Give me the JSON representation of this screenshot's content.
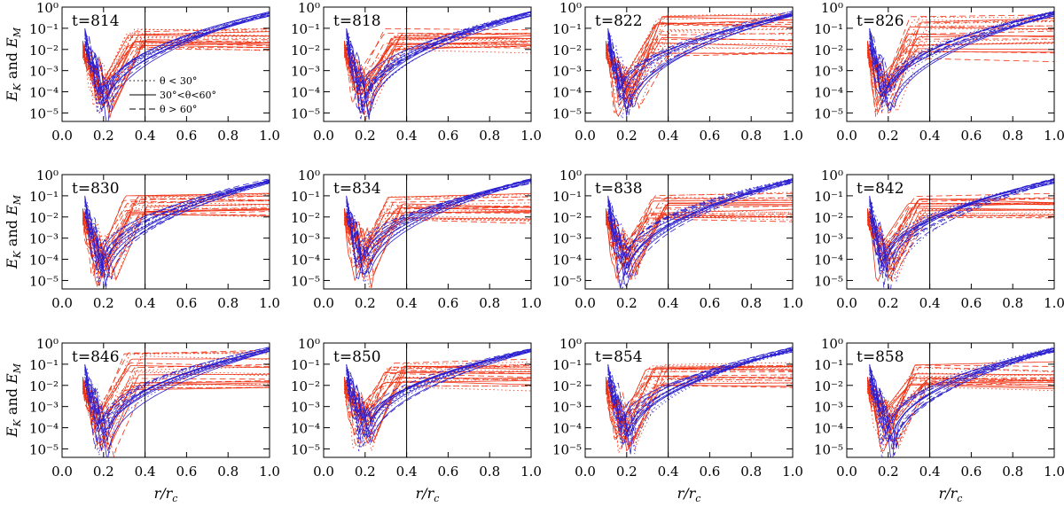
{
  "figure": {
    "ylabel_main": "E",
    "ylabel_m_sub": "M",
    "ylabel_and": "and",
    "ylabel_k_sub": "K",
    "xlabel_main": "r/r",
    "xlabel_sub": "c",
    "legend": [
      {
        "style": "dotted",
        "label": "θ < 30°"
      },
      {
        "style": "solid",
        "label": "30°<θ<60°"
      },
      {
        "style": "dashed",
        "label": "θ > 60°"
      }
    ]
  },
  "chart_data": {
    "type": "line",
    "panels": [
      "t=814",
      "t=818",
      "t=822",
      "t=826",
      "t=830",
      "t=834",
      "t=838",
      "t=842",
      "t=846",
      "t=850",
      "t=854",
      "t=858"
    ],
    "xlim": [
      0.0,
      1.0
    ],
    "ylim_log10": [
      -5.4,
      0.0
    ],
    "x_ticks": [
      "0.0",
      "0.2",
      "0.4",
      "0.6",
      "0.8",
      "1.0"
    ],
    "y_ticks": [
      "10⁻⁵",
      "10⁻⁴",
      "10⁻³",
      "10⁻²",
      "10⁻¹",
      "10⁰"
    ],
    "vertical_line_x": 0.4,
    "series": [
      {
        "name": "E_M (magnetic energy)",
        "color": "#2a1fd0",
        "start_x": 0.11,
        "end_value_x1": 0.5
      },
      {
        "name": "E_K (kinetic energy)",
        "color": "#f03010",
        "start_x": 0.1,
        "plateau_value": 0.02
      }
    ],
    "colors": {
      "magnetic": "#2a1fd0",
      "kinetic": "#f03010",
      "axes": "#000000"
    }
  }
}
